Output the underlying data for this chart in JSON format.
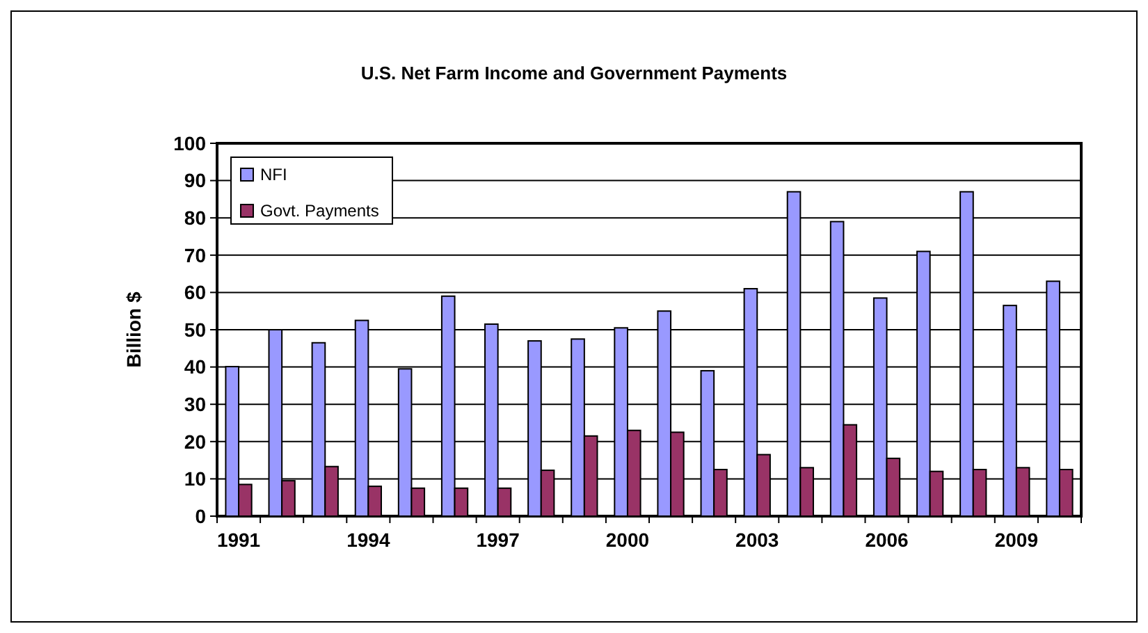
{
  "chart_data": {
    "type": "bar",
    "title": "U.S. Net Farm Income and Government Payments",
    "ylabel": "Billion $",
    "categories": [
      "1991",
      null,
      null,
      "1994",
      null,
      null,
      "1997",
      null,
      null,
      "2000",
      null,
      null,
      "2003",
      null,
      null,
      "2006",
      null,
      null,
      "2009",
      null
    ],
    "series": [
      {
        "name": "NFI",
        "color": "#9999ff",
        "values": [
          40.1,
          50,
          46.5,
          52.5,
          39.5,
          59,
          51.5,
          47,
          47.5,
          50.5,
          55,
          39,
          61,
          87,
          79,
          58.5,
          71,
          87,
          56.5,
          63
        ]
      },
      {
        "name": "Govt. Payments",
        "color": "#993366",
        "values": [
          8.5,
          9.5,
          13.3,
          8,
          7.5,
          7.5,
          7.5,
          12.3,
          21.5,
          23,
          22.5,
          12.5,
          16.5,
          13,
          24.5,
          15.5,
          12,
          12.5,
          13,
          12.5
        ]
      }
    ],
    "ylim": [
      0,
      100
    ],
    "yticks": [
      0,
      10,
      20,
      30,
      40,
      50,
      60,
      70,
      80,
      90,
      100
    ],
    "grid": "y",
    "legend": "top left"
  }
}
